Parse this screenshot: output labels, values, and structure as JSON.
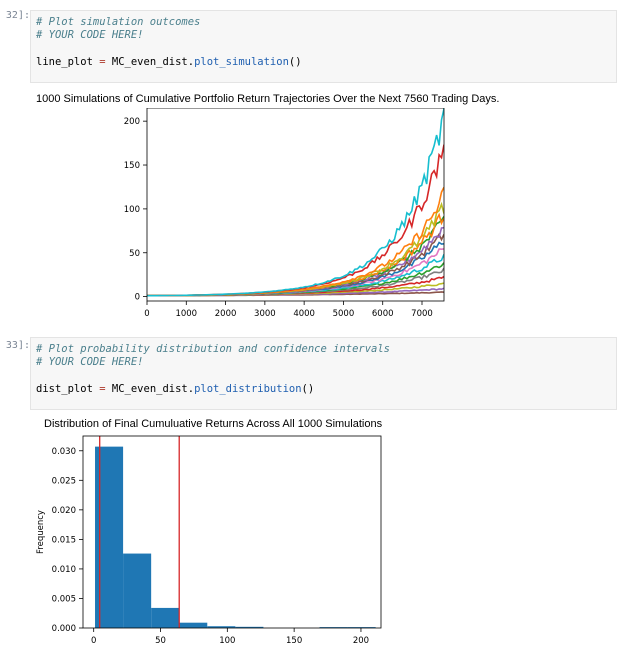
{
  "cells": [
    {
      "prompt": "32]:",
      "code_comment1": "# Plot simulation outcomes",
      "code_comment2": "# YOUR CODE HERE!",
      "var": "line_plot",
      "op": "=",
      "obj": "MC_even_dist.",
      "fn": "plot_simulation",
      "paren": "()"
    },
    {
      "prompt": "33]:",
      "code_comment1": "# Plot probability distribution and confidence intervals",
      "code_comment2": "# YOUR CODE HERE!",
      "var": "dist_plot",
      "op": "=",
      "obj": "MC_even_dist.",
      "fn": "plot_distribution",
      "paren": "()"
    }
  ],
  "chart_data": [
    {
      "type": "line",
      "title": "1000 Simulations of Cumulative Portfolio Return Trajectories Over the Next 7560 Trading Days.",
      "xlim": [
        0,
        7560
      ],
      "ylim": [
        -5,
        215
      ],
      "x_ticks": [
        "0",
        "1000",
        "2000",
        "3000",
        "4000",
        "5000",
        "6000",
        "7000"
      ],
      "y_ticks": [
        "0",
        "50",
        "100",
        "150",
        "200"
      ],
      "x_tick_values": [
        0,
        1000,
        2000,
        3000,
        4000,
        5000,
        6000,
        7000
      ],
      "y_tick_values": [
        0,
        50,
        100,
        150,
        200
      ],
      "series_count": 1000,
      "highlighted_series_final": [
        {
          "final": 205,
          "color": "#17becf"
        },
        {
          "final": 172,
          "color": "#d62728"
        },
        {
          "final": 116,
          "color": "#ff7f0e"
        },
        {
          "final": 102,
          "color": "#bcbd22"
        },
        {
          "final": 95,
          "color": "#ff7f0e"
        },
        {
          "final": 88,
          "color": "#2ca02c"
        },
        {
          "final": 80,
          "color": "#9467bd"
        },
        {
          "final": 72,
          "color": "#8c564b"
        },
        {
          "final": 64,
          "color": "#1f77b4"
        },
        {
          "final": 55,
          "color": "#e377c2"
        },
        {
          "final": 46,
          "color": "#17becf"
        },
        {
          "final": 38,
          "color": "#2ca02c"
        },
        {
          "final": 30,
          "color": "#7f7f7f"
        },
        {
          "final": 22,
          "color": "#d62728"
        },
        {
          "final": 15,
          "color": "#bcbd22"
        },
        {
          "final": 9,
          "color": "#9467bd"
        },
        {
          "final": 5,
          "color": "#8c564b"
        }
      ],
      "grid": false
    },
    {
      "type": "bar",
      "title": "Distribution of Final Cumuluative Returns Across All 1000 Simulations",
      "ylabel": "Frequency",
      "xlim": [
        -8,
        215
      ],
      "ylim": [
        0,
        0.0325
      ],
      "x_ticks": [
        "0",
        "50",
        "100",
        "150",
        "200"
      ],
      "x_tick_values": [
        0,
        50,
        100,
        150,
        200
      ],
      "y_ticks": [
        "0.000",
        "0.005",
        "0.010",
        "0.015",
        "0.020",
        "0.025",
        "0.030"
      ],
      "y_tick_values": [
        0,
        0.005,
        0.01,
        0.015,
        0.02,
        0.025,
        0.03
      ],
      "bins": [
        {
          "x0": 1,
          "x1": 22,
          "value": 0.0307
        },
        {
          "x0": 22,
          "x1": 43,
          "value": 0.0126
        },
        {
          "x0": 43,
          "x1": 64,
          "value": 0.0034
        },
        {
          "x0": 64,
          "x1": 85,
          "value": 0.0009
        },
        {
          "x0": 85,
          "x1": 106,
          "value": 0.0003
        },
        {
          "x0": 106,
          "x1": 127,
          "value": 0.0002
        },
        {
          "x0": 127,
          "x1": 148,
          "value": 0.0
        },
        {
          "x0": 148,
          "x1": 169,
          "value": 0.0
        },
        {
          "x0": 169,
          "x1": 190,
          "value": 0.00015
        },
        {
          "x0": 190,
          "x1": 211,
          "value": 0.00015
        }
      ],
      "bar_color": "#1f77b4",
      "confidence_lines": [
        4.5,
        64
      ],
      "line_color": "#d62728",
      "grid": false
    }
  ]
}
